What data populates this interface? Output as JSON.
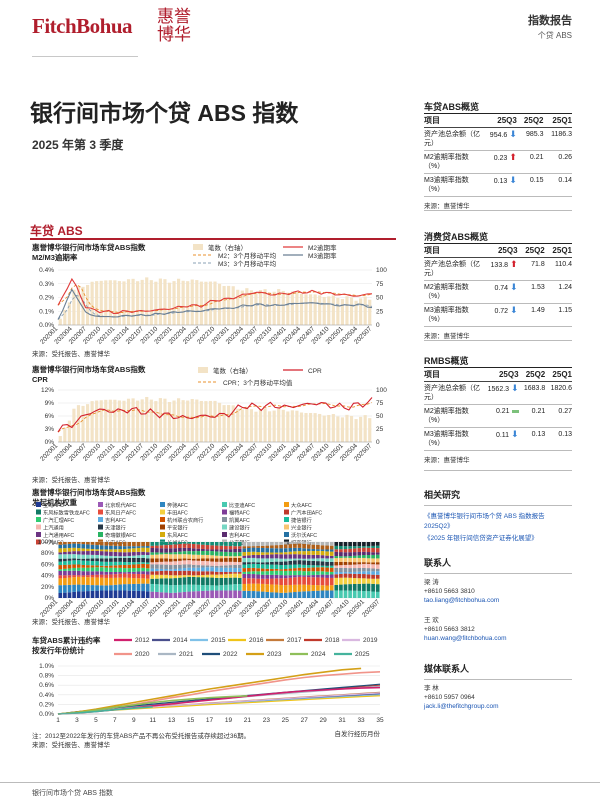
{
  "brand": {
    "name": "FitchBohua",
    "cn_line1": "惠誉",
    "cn_line2": "博华"
  },
  "header": {
    "report_type": "指数报告",
    "category": "个贷 ABS"
  },
  "title": "银行间市场个贷 ABS 指数",
  "subtitle": "2025 年第 3 季度",
  "section": "车贷 ABS",
  "chart1": {
    "title_line1": "惠誉博华银行间市场车贷ABS指数",
    "title_line2": "M2/M3逾期率",
    "legend": {
      "bar": "笔数（右轴）",
      "m2": "M2逾期率",
      "m2avg": "M2：3个月移动平均",
      "m3": "M3逾期率",
      "m3avg": "M3：3个月移动平均"
    },
    "y_left": [
      "0.4%",
      "0.3%",
      "0.2%",
      "0.1%",
      "0.0%"
    ],
    "y_right": [
      "100",
      "75",
      "50",
      "25",
      "0"
    ],
    "source": "来源：受托报告、惠誉博华"
  },
  "chart2": {
    "title_line1": "惠誉博华银行间市场车贷ABS指数",
    "title_line2": "CPR",
    "legend": {
      "bar": "笔数（右轴）",
      "cpr": "CPR",
      "cpravg": "CPR：3个月移动平均值"
    },
    "y_left": [
      "12%",
      "9%",
      "6%",
      "3%",
      "0%"
    ],
    "y_right": [
      "100",
      "75",
      "50",
      "25",
      "0"
    ],
    "source": "来源：受托报告、惠誉博华"
  },
  "chart3": {
    "title_line1": "惠誉博华银行间市场车贷ABS指数",
    "title_line2": "发起机构权重",
    "legend": [
      "宝马AFC",
      "北京现代AFC",
      "奔驰AFC",
      "比亚迪AFC",
      "大众AFC",
      "东风标致雪铁龙AFC",
      "东风日产AFC",
      "丰田AFC",
      "福特AFC",
      "广汽本田AFC",
      "广汽汇理AFC",
      "吉利AFC",
      "杭州联合农商行",
      "凯翼AFC",
      "捷信银行",
      "上汽通用",
      "天津银行",
      "平安银行",
      "建设银行",
      "兴业银行",
      "上汽通用AFC",
      "奇瑞徽银AFC",
      "东风AFC",
      "吉利AFC",
      "沃尔沃AFC",
      "一汽AFC",
      "长安AFC",
      "长城AFC",
      "北京银行",
      "招商银行"
    ],
    "y_left": [
      "100%",
      "80%",
      "60%",
      "40%",
      "20%",
      "0%"
    ],
    "source": "来源：受托报告、惠誉博华"
  },
  "chart4": {
    "title_line1": "车贷ABS累计违约率",
    "title_line2": "按发行年份统计",
    "legend_row1": [
      "2012",
      "2014",
      "2015",
      "2016",
      "2017",
      "2018",
      "2019"
    ],
    "legend_row2": [
      "2020",
      "2021",
      "2022",
      "2023",
      "2024",
      "2025"
    ],
    "y_left": [
      "1.0%",
      "0.8%",
      "0.6%",
      "0.4%",
      "0.2%",
      "0.0%"
    ],
    "x_ticks": [
      "1",
      "3",
      "5",
      "7",
      "9",
      "11",
      "13",
      "15",
      "17",
      "19",
      "21",
      "23",
      "25",
      "27",
      "29",
      "31",
      "33",
      "35"
    ],
    "xlabel": "自发行经历月份",
    "note": "注：2012至2022年发行的车贷ABS产品不再公布受托报告或存续超过36期。",
    "source": "来源：受托报告、惠誉博华"
  },
  "x_dates": [
    "202001",
    "202004",
    "202007",
    "202010",
    "202101",
    "202104",
    "202107",
    "202110",
    "202201",
    "202204",
    "202207",
    "202210",
    "202301",
    "202304",
    "202307",
    "202310",
    "202401",
    "202404",
    "202407",
    "202410",
    "202501",
    "202504",
    "202507"
  ],
  "x_dates_short": [
    "202001",
    "202004",
    "202007",
    "202010",
    "202101",
    "202104",
    "202107",
    "202110",
    "202201",
    "202204",
    "202207",
    "202210",
    "202301",
    "202304",
    "202307",
    "202310",
    "202401",
    "202404",
    "202407",
    "202410",
    "202501",
    "202507"
  ],
  "panels": {
    "auto": {
      "title": "车贷ABS概览",
      "headers": [
        "项目",
        "25Q3",
        "25Q2",
        "25Q1"
      ],
      "rows": [
        {
          "label": "资产池总余额（亿元）",
          "q3": "954.6",
          "dir": "down",
          "q2": "985.3",
          "q1": "1186.3"
        },
        {
          "label": "M2逾期率指数（%）",
          "q3": "0.23",
          "dir": "up",
          "q2": "0.21",
          "q1": "0.26"
        },
        {
          "label": "M3逾期率指数（%）",
          "q3": "0.13",
          "dir": "down",
          "q2": "0.15",
          "q1": "0.14"
        }
      ],
      "source": "来源：惠誉博华"
    },
    "consumer": {
      "title": "消费贷ABS概览",
      "headers": [
        "项目",
        "25Q3",
        "25Q2",
        "25Q1"
      ],
      "rows": [
        {
          "label": "资产池总余额（亿元）",
          "q3": "133.8",
          "dir": "up",
          "q2": "71.8",
          "q1": "110.4"
        },
        {
          "label": "M2逾期率指数（%）",
          "q3": "0.74",
          "dir": "down",
          "q2": "1.53",
          "q1": "1.24"
        },
        {
          "label": "M3逾期率指数（%）",
          "q3": "0.72",
          "dir": "down",
          "q2": "1.49",
          "q1": "1.15"
        }
      ],
      "source": "来源：惠誉博华"
    },
    "rmbs": {
      "title": "RMBS概览",
      "headers": [
        "项目",
        "25Q3",
        "25Q2",
        "25Q1"
      ],
      "rows": [
        {
          "label": "资产池总余额（亿元）",
          "q3": "1562.3",
          "dir": "down",
          "q2": "1683.8",
          "q1": "1820.6"
        },
        {
          "label": "M2逾期率指数（%）",
          "q3": "0.21",
          "dir": "flat",
          "q2": "0.21",
          "q1": "0.27"
        },
        {
          "label": "M3逾期率指数（%）",
          "q3": "0.11",
          "dir": "down",
          "q2": "0.13",
          "q1": "0.13"
        }
      ],
      "source": "来源：惠誉博华"
    }
  },
  "related": {
    "title": "相关研究",
    "links": [
      "《惠誉博华银行间市场个贷 ABS 指数报告 2025Q2》",
      "《2025 年银行间信贷资产证券化展望》"
    ]
  },
  "contacts": {
    "title": "联系人",
    "people": [
      {
        "name": "梁 涛",
        "phone": "+8610 5663 3810",
        "email": "tao.liang@fitchbohua.com"
      },
      {
        "name": "王 欢",
        "phone": "+8610 5663 3812",
        "email": "huan.wang@fitchbohua.com"
      }
    ]
  },
  "media": {
    "title": "媒体联系人",
    "people": [
      {
        "name": "李 林",
        "phone": "+8610 5957 0964",
        "email": "jack.li@thefitchgroup.com"
      }
    ]
  },
  "footer": "银行间市场个贷 ABS 指数",
  "colors": {
    "brand": "#b01e2d",
    "bar": "#f3e3c6",
    "m2": "#e03a3a",
    "m3": "#6a7f94",
    "arrow_up": "#d3202c",
    "arrow_down": "#3b86d6"
  },
  "chart_data": [
    {
      "type": "line",
      "title": "惠誉博华银行间市场车贷ABS指数 M2/M3逾期率",
      "x": [
        "202001",
        "202004",
        "202007",
        "202010",
        "202101",
        "202104",
        "202107",
        "202110",
        "202201",
        "202204",
        "202207",
        "202210",
        "202301",
        "202304",
        "202307",
        "202310",
        "202401",
        "202404",
        "202407",
        "202410",
        "202501",
        "202504",
        "202507"
      ],
      "series": [
        {
          "name": "笔数（右轴）",
          "values": [
            8,
            65,
            75,
            82,
            80,
            82,
            83,
            82,
            80,
            82,
            80,
            78,
            70,
            64,
            62,
            62,
            62,
            58,
            55,
            52,
            50,
            48,
            48
          ]
        },
        {
          "name": "M2逾期率",
          "values": [
            0.14,
            0.34,
            0.12,
            0.1,
            0.09,
            0.1,
            0.1,
            0.11,
            0.12,
            0.14,
            0.14,
            0.18,
            0.19,
            0.22,
            0.24,
            0.22,
            0.23,
            0.24,
            0.24,
            0.23,
            0.22,
            0.21,
            0.23
          ]
        },
        {
          "name": "M3逾期率",
          "values": [
            0.04,
            0.26,
            0.08,
            0.06,
            0.06,
            0.07,
            0.07,
            0.08,
            0.09,
            0.1,
            0.1,
            0.12,
            0.12,
            0.14,
            0.15,
            0.14,
            0.15,
            0.16,
            0.16,
            0.15,
            0.14,
            0.15,
            0.13
          ]
        }
      ],
      "ylim": [
        0,
        0.4
      ],
      "ylim_right": [
        0,
        100
      ]
    },
    {
      "type": "line",
      "title": "惠誉博华银行间市场车贷ABS指数 CPR",
      "x": [
        "202001",
        "202004",
        "202007",
        "202010",
        "202101",
        "202104",
        "202107",
        "202110",
        "202201",
        "202204",
        "202207",
        "202210",
        "202301",
        "202304",
        "202307",
        "202310",
        "202401",
        "202404",
        "202407",
        "202410",
        "202501",
        "202504",
        "202507"
      ],
      "series": [
        {
          "name": "CPR",
          "values": [
            3.0,
            4.0,
            6.5,
            7.5,
            7.0,
            7.5,
            7.0,
            6.5,
            6.0,
            5.5,
            6.0,
            6.0,
            6.5,
            8.5,
            8.0,
            8.5,
            8.0,
            8.5,
            9.0,
            8.5,
            8.0,
            8.5,
            9.5
          ]
        },
        {
          "name": "CPR：3个月移动平均值",
          "values": [
            3.0,
            3.5,
            5.5,
            7.0,
            7.2,
            7.3,
            7.1,
            6.8,
            6.2,
            5.8,
            5.8,
            6.0,
            6.2,
            7.5,
            8.2,
            8.3,
            8.2,
            8.4,
            8.6,
            8.6,
            8.3,
            8.3,
            8.8
          ]
        }
      ],
      "ylim": [
        0,
        12
      ],
      "ylim_right": [
        0,
        100
      ]
    },
    {
      "type": "bar",
      "title": "惠誉博华银行间市场车贷ABS指数 发起机构权重",
      "x": [
        "202001",
        "202004",
        "202007",
        "202010",
        "202101",
        "202104",
        "202107",
        "202110",
        "202201",
        "202204",
        "202207",
        "202210",
        "202301",
        "202304",
        "202307",
        "202310",
        "202401",
        "202404",
        "202407",
        "202410",
        "202501",
        "202507"
      ],
      "ylim": [
        0,
        100
      ]
    },
    {
      "type": "line",
      "title": "车贷ABS累计违约率 按发行年份统计",
      "x": [
        1,
        3,
        5,
        7,
        9,
        11,
        13,
        15,
        17,
        19,
        21,
        23,
        25,
        27,
        29,
        31,
        33,
        35
      ],
      "series": [
        {
          "name": "2012",
          "values": [
            0.0,
            0.02,
            0.05,
            0.09,
            0.13,
            0.17,
            0.21,
            0.25,
            0.29,
            0.33,
            0.37,
            0.41,
            0.45,
            0.48,
            0.5,
            0.52,
            0.54,
            0.55
          ]
        },
        {
          "name": "2020",
          "values": [
            0.0,
            0.03,
            0.08,
            0.14,
            0.2,
            0.27,
            0.34,
            0.4,
            0.47,
            0.53,
            0.59,
            0.65,
            0.71,
            0.76,
            0.8,
            0.83,
            0.86,
            0.88
          ]
        },
        {
          "name": "2023",
          "values": [
            0.0,
            0.04,
            0.1,
            0.17,
            0.24,
            0.31,
            0.38,
            0.45,
            0.52,
            0.58,
            0.64,
            0.7,
            0.76,
            0.82,
            0.87,
            0.92,
            0.95,
            null
          ]
        },
        {
          "name": "2024",
          "values": [
            0.0,
            0.03,
            0.08,
            0.14,
            0.19,
            0.24,
            0.28,
            0.31,
            0.34,
            0.36,
            0.38,
            null,
            null,
            null,
            null,
            null,
            null,
            null
          ]
        },
        {
          "name": "2025",
          "values": [
            0.0,
            0.02,
            0.05,
            0.09,
            0.12,
            0.15,
            null,
            null,
            null,
            null,
            null,
            null,
            null,
            null,
            null,
            null,
            null,
            null
          ]
        }
      ],
      "xlabel": "自发行经历月份",
      "ylim": [
        0,
        1.0
      ]
    }
  ]
}
